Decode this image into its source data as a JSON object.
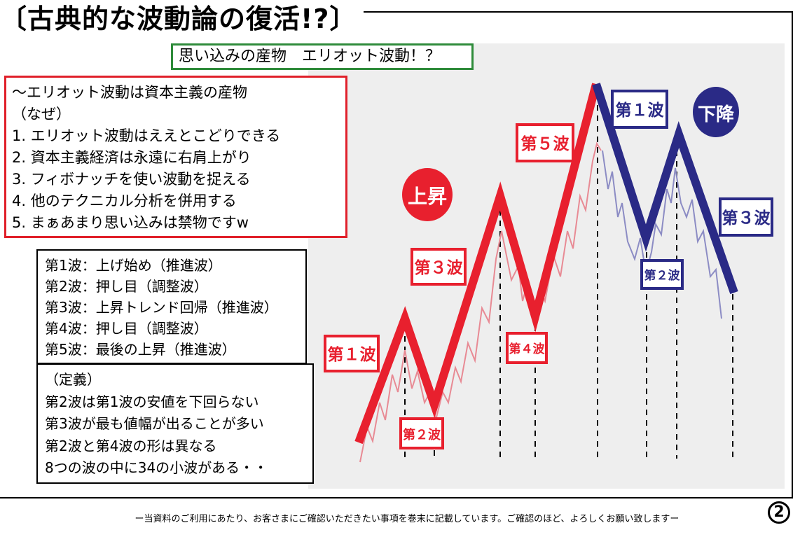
{
  "title": "〔古典的な波動論の復活!?〕",
  "subtitle": "思い込みの産物　エリオット波動！？",
  "reasons": [
    "～エリオット波動は資本主義の産物",
    "（なぜ）",
    "1. エリオット波動はええとこどりできる",
    "2. 資本主義経済は永遠に右肩上がり",
    "3. フィボナッチを使い波動を捉える",
    "4. 他のテクニカル分析を併用する",
    "5. まぁあまり思い込みは禁物ですw"
  ],
  "waves": [
    "第1波：上げ始め（推進波）",
    "第2波：押し目（調整波）",
    "第3波：上昇トレンド回帰（推進波）",
    "第4波：押し目（調整波）",
    "第5波：最後の上昇（推進波）"
  ],
  "definitions": [
    "（定義）",
    "第2波は第1波の安値を下回らない",
    "第3波が最も値幅が出ることが多い",
    "第2波と第4波の形は異なる",
    "8つの波の中に34の小波がある・・"
  ],
  "diagram": {
    "rise_badge": "上昇",
    "fall_badge": "下降",
    "up_labels": [
      "第１波",
      "第２波",
      "第３波",
      "第４波",
      "第５波"
    ],
    "down_labels": [
      "第１波",
      "第２波",
      "第３波"
    ],
    "rise_color": "#e8202e",
    "fall_color": "#2a2a86"
  },
  "footer": "ー当資料のご利用にあたり、お客さまにご確認いただきたい事項を巻末に記載しています。ご確認のほど、よろしくお願い致しますー",
  "page_number": "2"
}
